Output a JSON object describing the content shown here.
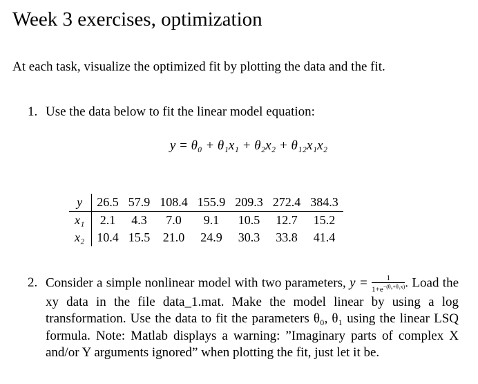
{
  "header": {
    "title": "Week 3 exercises, optimization"
  },
  "intro": "At each task, visualize the optimized fit by plotting the data and the fit.",
  "items": [
    {
      "number": "1.",
      "text": "Use the data below to fit the linear model equation:",
      "equation": "y = θ₀ + θ₁x₁ + θ₂x₂ + θ₁₂x₁x₂",
      "table": {
        "rows": [
          [
            "y",
            "26.5",
            "57.9",
            "108.4",
            "155.9",
            "209.3",
            "272.4",
            "384.3"
          ],
          [
            "x₁",
            "2.1",
            "4.3",
            "7.0",
            "9.1",
            "10.5",
            "12.7",
            "15.2"
          ],
          [
            "x₂",
            "10.4",
            "15.5",
            "21.0",
            "24.9",
            "30.3",
            "33.8",
            "41.4"
          ]
        ]
      }
    },
    {
      "number": "2.",
      "text": "Consider a simple nonlinear model with two parameters,",
      "formula": {
        "lhs": "y =",
        "numerator": "1",
        "denominator": "1+e",
        "exponent": "−(θ₀+θ₁x)",
        "trailing": "."
      },
      "body": "Load the xy data in the file data_1.mat. Make the model linear by using a log transformation. Use the data to fit the parameters θ₀, θ₁ using the linear LSQ formula.",
      "note": "Note: Matlab displays a warning: ”Imaginary parts of complex X and/or Y arguments ignored” when plotting the fit, just let it be."
    }
  ]
}
